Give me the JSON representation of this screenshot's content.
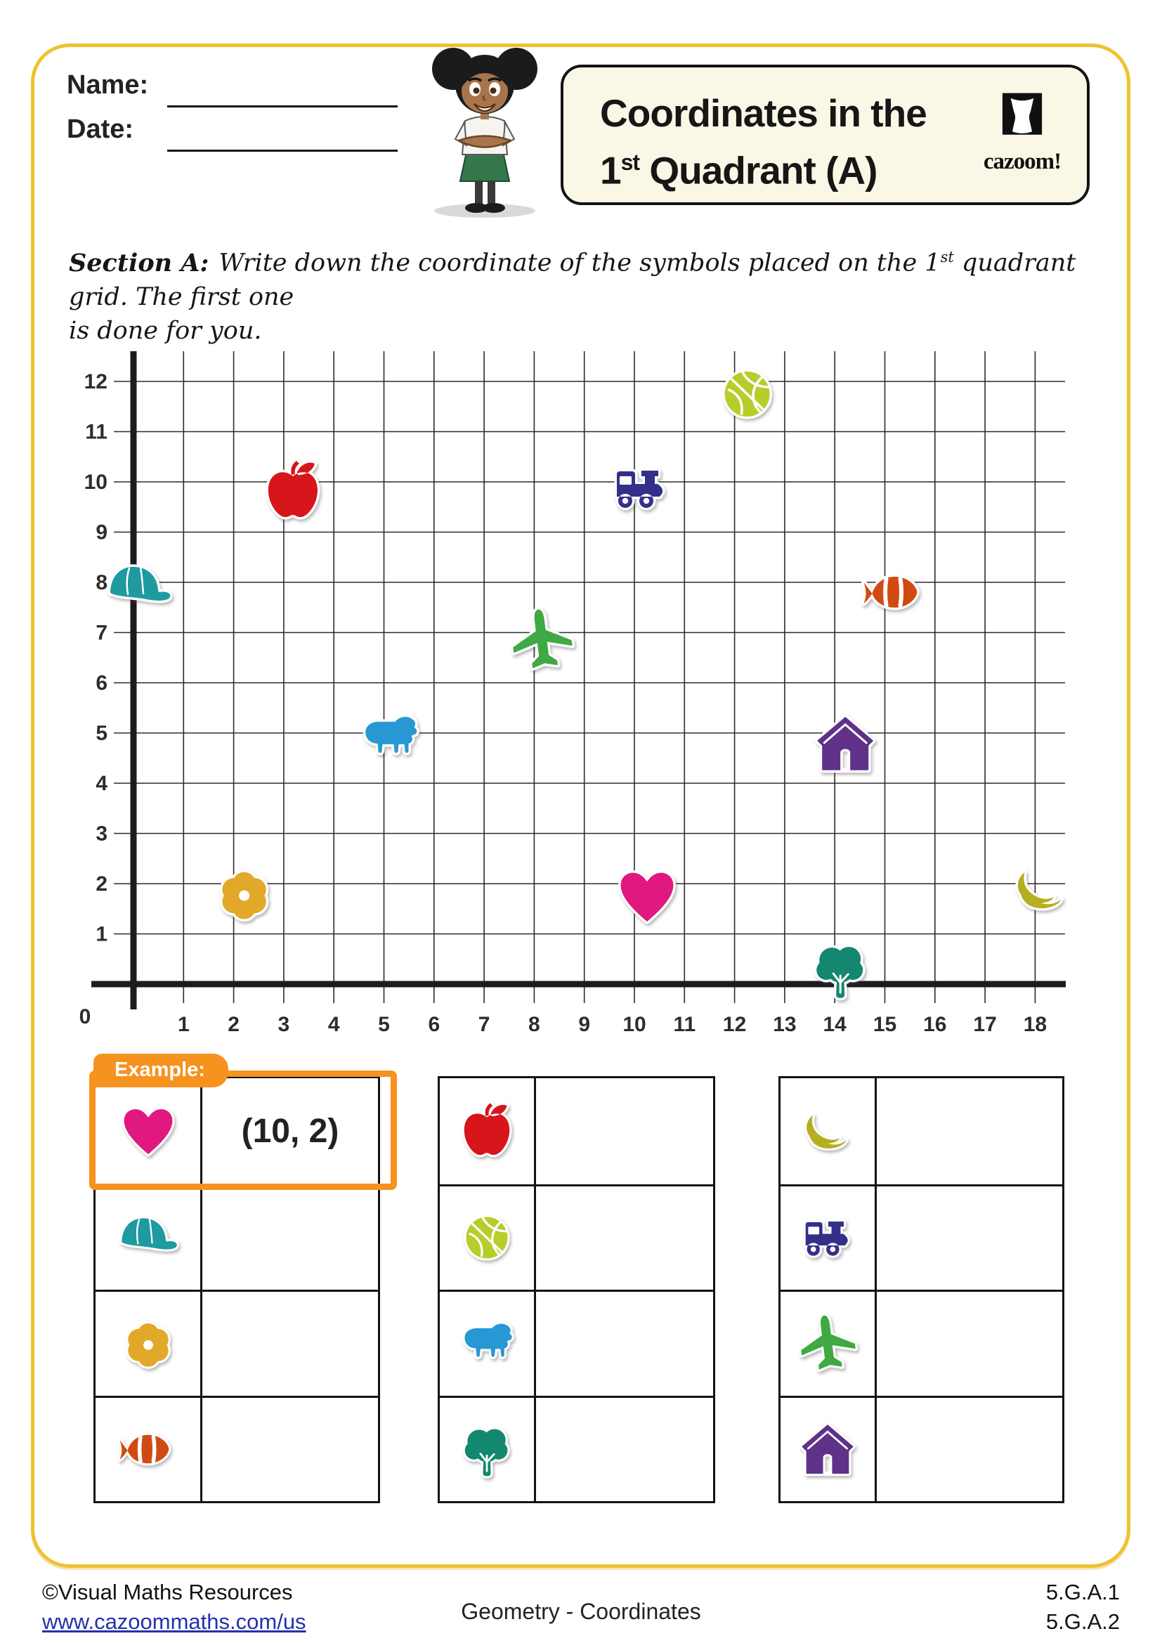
{
  "header": {
    "name_label": "Name:",
    "date_label": "Date:",
    "title_line1": "Coordinates in the",
    "title_num": "1",
    "title_sup": "st",
    "title_rest": " Quadrant (A)",
    "logo_text": "cazoom!"
  },
  "instructions": {
    "label": "Section A:",
    "part1": "Write down the coordinate of the symbols placed on the 1",
    "sup": "st",
    "part2": " quadrant grid. The first one",
    "part3": "is done for you."
  },
  "chart_data": {
    "type": "scatter",
    "title": "",
    "xlabel": "",
    "ylabel": "",
    "xlim": [
      0,
      18
    ],
    "ylim": [
      0,
      12
    ],
    "grid": true,
    "x_ticks": [
      "0",
      "1",
      "2",
      "3",
      "4",
      "5",
      "6",
      "7",
      "8",
      "9",
      "10",
      "11",
      "12",
      "13",
      "14",
      "15",
      "16",
      "17",
      "18"
    ],
    "y_ticks": [
      "1",
      "2",
      "3",
      "4",
      "5",
      "6",
      "7",
      "8",
      "9",
      "10",
      "11",
      "12"
    ],
    "points": [
      {
        "symbol": "basketball",
        "x": 12,
        "y": 12,
        "color": "#b7cd2b"
      },
      {
        "symbol": "apple",
        "x": 3,
        "y": 10,
        "color": "#d6161b"
      },
      {
        "symbol": "train",
        "x": 10,
        "y": 10,
        "color": "#34308a"
      },
      {
        "symbol": "cap",
        "x": 0,
        "y": 8,
        "color": "#1e9aa0"
      },
      {
        "symbol": "fish",
        "x": 15,
        "y": 8,
        "color": "#d04a12"
      },
      {
        "symbol": "airplane",
        "x": 8,
        "y": 7,
        "color": "#3fa944"
      },
      {
        "symbol": "bear",
        "x": 5,
        "y": 5,
        "color": "#2898d5"
      },
      {
        "symbol": "house",
        "x": 14,
        "y": 5,
        "color": "#5f3189"
      },
      {
        "symbol": "flower",
        "x": 2,
        "y": 2,
        "color": "#e2a82a"
      },
      {
        "symbol": "heart",
        "x": 10,
        "y": 2,
        "color": "#e0187f"
      },
      {
        "symbol": "banana",
        "x": 18,
        "y": 2,
        "color": "#b5ae1f"
      },
      {
        "symbol": "tree",
        "x": 14,
        "y": 0,
        "color": "#13876f"
      }
    ]
  },
  "symbol_colors": {
    "heart": "#e0187f",
    "cap": "#1e9aa0",
    "flower": "#e2a82a",
    "fish": "#d04a12",
    "apple": "#d6161b",
    "basketball": "#b7cd2b",
    "bear": "#2898d5",
    "tree": "#13876f",
    "banana": "#b5ae1f",
    "train": "#34308a",
    "airplane": "#3fa944",
    "house": "#5f3189"
  },
  "example_tab_label": "Example:",
  "tables": [
    {
      "rows": [
        {
          "symbol": "heart",
          "answer": "(10, 2)",
          "example": true
        },
        {
          "symbol": "cap",
          "answer": ""
        },
        {
          "symbol": "flower",
          "answer": ""
        },
        {
          "symbol": "fish",
          "answer": ""
        }
      ]
    },
    {
      "rows": [
        {
          "symbol": "apple",
          "answer": ""
        },
        {
          "symbol": "basketball",
          "answer": ""
        },
        {
          "symbol": "bear",
          "answer": ""
        },
        {
          "symbol": "tree",
          "answer": ""
        }
      ]
    },
    {
      "rows": [
        {
          "symbol": "banana",
          "answer": ""
        },
        {
          "symbol": "train",
          "answer": ""
        },
        {
          "symbol": "airplane",
          "answer": ""
        },
        {
          "symbol": "house",
          "answer": ""
        }
      ]
    }
  ],
  "footer": {
    "copyright": "©Visual Maths Resources",
    "link": "www.cazoommaths.com/us",
    "center": "Geometry - Coordinates",
    "standards": [
      "5.G.A.1",
      "5.G.A.2"
    ]
  },
  "colors": {
    "page_border": "#EFC22E",
    "example_orange": "#F6921E",
    "title_box_bg": "#FBF7E7",
    "link_blue": "#2531AC"
  }
}
